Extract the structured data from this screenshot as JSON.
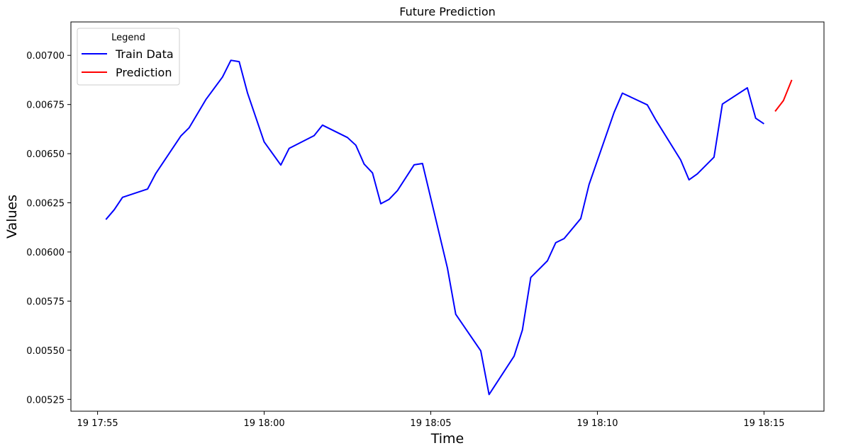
{
  "chart_data": {
    "type": "line",
    "title": "Future Prediction",
    "xlabel": "Time",
    "ylabel": "Values",
    "xlim": [
      "19 17:54:12",
      "19 18:16:48"
    ],
    "ylim": [
      0.00519,
      0.00717
    ],
    "x_ticks": [
      "19 17:55",
      "19 18:00",
      "19 18:05",
      "19 18:10",
      "19 18:15"
    ],
    "y_ticks": [
      "0.00525",
      "0.00550",
      "0.00575",
      "0.00600",
      "0.00625",
      "0.00650",
      "0.00675",
      "0.00700"
    ],
    "legend": {
      "title": "Legend",
      "position": "top-left"
    },
    "grid": false,
    "series": [
      {
        "name": "Train Data",
        "color": "#0000ff",
        "x": [
          "19 17:55:15",
          "19 17:55:30",
          "19 17:55:45",
          "19 17:56:30",
          "19 17:56:45",
          "19 17:57:30",
          "19 17:57:45",
          "19 17:58:15",
          "19 17:58:45",
          "19 17:59:00",
          "19 17:59:15",
          "19 17:59:30",
          "19 18:00:00",
          "19 18:00:30",
          "19 18:00:45",
          "19 18:01:30",
          "19 18:01:45",
          "19 18:02:30",
          "19 18:02:45",
          "19 18:03:00",
          "19 18:03:15",
          "19 18:03:30",
          "19 18:03:45",
          "19 18:04:00",
          "19 18:04:30",
          "19 18:04:45",
          "19 18:05:30",
          "19 18:05:45",
          "19 18:06:30",
          "19 18:06:45",
          "19 18:07:30",
          "19 18:07:45",
          "19 18:08:00",
          "19 18:08:30",
          "19 18:08:45",
          "19 18:09:00",
          "19 18:09:30",
          "19 18:09:45",
          "19 18:10:30",
          "19 18:10:45",
          "19 18:11:30",
          "19 18:11:45",
          "19 18:12:30",
          "19 18:12:45",
          "19 18:13:00",
          "19 18:13:30",
          "19 18:13:45",
          "19 18:14:30",
          "19 18:14:45",
          "19 18:15:00"
        ],
        "y": [
          0.006165,
          0.006215,
          0.006278,
          0.00632,
          0.0064,
          0.00659,
          0.006632,
          0.006775,
          0.00689,
          0.006975,
          0.006968,
          0.006808,
          0.00656,
          0.006442,
          0.006527,
          0.006592,
          0.006645,
          0.006582,
          0.006543,
          0.006447,
          0.006402,
          0.006245,
          0.006268,
          0.006312,
          0.006443,
          0.00645,
          0.005918,
          0.005683,
          0.005497,
          0.005275,
          0.00547,
          0.005603,
          0.00587,
          0.005955,
          0.006047,
          0.006068,
          0.00617,
          0.006343,
          0.00671,
          0.006808,
          0.006748,
          0.006672,
          0.006468,
          0.006367,
          0.006397,
          0.006482,
          0.006752,
          0.006835,
          0.00668,
          0.006652
        ]
      },
      {
        "name": "Prediction",
        "color": "#ff0000",
        "x": [
          "19 18:15:20",
          "19 18:15:35",
          "19 18:15:50"
        ],
        "y": [
          0.006715,
          0.00677,
          0.006875
        ]
      }
    ]
  }
}
